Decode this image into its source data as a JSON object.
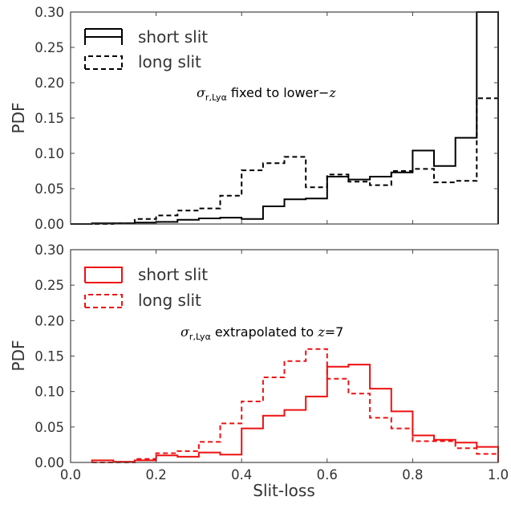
{
  "chart_data": [
    {
      "type": "histogram",
      "ylabel": "PDF",
      "xlabel": "",
      "xlim": [
        0.0,
        1.0
      ],
      "ylim": [
        0.0,
        0.3
      ],
      "yticks": [
        "0.00",
        "0.05",
        "0.10",
        "0.15",
        "0.20",
        "0.25",
        "0.30"
      ],
      "xticks": [],
      "annotation": {
        "sigma": "σ",
        "sub": "r,Lyα",
        "text": " fixed to lower−",
        "var": "z"
      },
      "legend": {
        "position": "top-left"
      },
      "bin_edges": [
        0.0,
        0.05,
        0.1,
        0.15,
        0.2,
        0.25,
        0.3,
        0.35,
        0.4,
        0.45,
        0.5,
        0.55,
        0.6,
        0.65,
        0.7,
        0.75,
        0.8,
        0.85,
        0.9,
        0.95,
        1.0
      ],
      "series": [
        {
          "name": "short slit",
          "color": "#000000",
          "dash": "solid",
          "values": [
            0.0,
            0.001,
            0.001,
            0.002,
            0.003,
            0.006,
            0.008,
            0.009,
            0.007,
            0.025,
            0.035,
            0.036,
            0.067,
            0.063,
            0.067,
            0.073,
            0.104,
            0.082,
            0.122,
            0.3
          ]
        },
        {
          "name": "long slit",
          "color": "#000000",
          "dash": "dashed",
          "values": [
            0.0,
            0.0,
            0.001,
            0.007,
            0.012,
            0.019,
            0.022,
            0.04,
            0.076,
            0.086,
            0.095,
            0.052,
            0.07,
            0.06,
            0.055,
            0.075,
            0.078,
            0.059,
            0.061,
            0.178
          ]
        }
      ]
    },
    {
      "type": "histogram",
      "ylabel": "PDF",
      "xlabel": "Slit-loss",
      "xlim": [
        0.0,
        1.0
      ],
      "ylim": [
        0.0,
        0.3
      ],
      "yticks": [
        "0.00",
        "0.05",
        "0.10",
        "0.15",
        "0.20",
        "0.25",
        "0.30"
      ],
      "xticks": [
        "0.0",
        "0.2",
        "0.4",
        "0.6",
        "0.8",
        "1.0"
      ],
      "annotation": {
        "sigma": "σ",
        "sub": "r,Lyα",
        "text": " extrapolated to ",
        "var": "z",
        "tail": "=7"
      },
      "legend": {
        "position": "top-left"
      },
      "bin_edges": [
        0.05,
        0.1,
        0.15,
        0.2,
        0.25,
        0.3,
        0.35,
        0.4,
        0.45,
        0.5,
        0.55,
        0.6,
        0.65,
        0.7,
        0.75,
        0.8,
        0.85,
        0.9,
        0.95,
        1.0
      ],
      "series": [
        {
          "name": "short slit",
          "color": "#ee1111",
          "dash": "solid",
          "values": [
            0.003,
            0.001,
            0.003,
            0.01,
            0.008,
            0.014,
            0.011,
            0.048,
            0.066,
            0.074,
            0.093,
            0.135,
            0.138,
            0.104,
            0.072,
            0.038,
            0.032,
            0.028,
            0.022
          ]
        },
        {
          "name": "long slit",
          "color": "#ee1111",
          "dash": "dashed",
          "values": [
            0.0,
            0.0,
            0.005,
            0.013,
            0.016,
            0.029,
            0.055,
            0.086,
            0.12,
            0.143,
            0.16,
            0.118,
            0.097,
            0.063,
            0.048,
            0.03,
            0.03,
            0.02,
            0.012
          ]
        }
      ]
    }
  ]
}
